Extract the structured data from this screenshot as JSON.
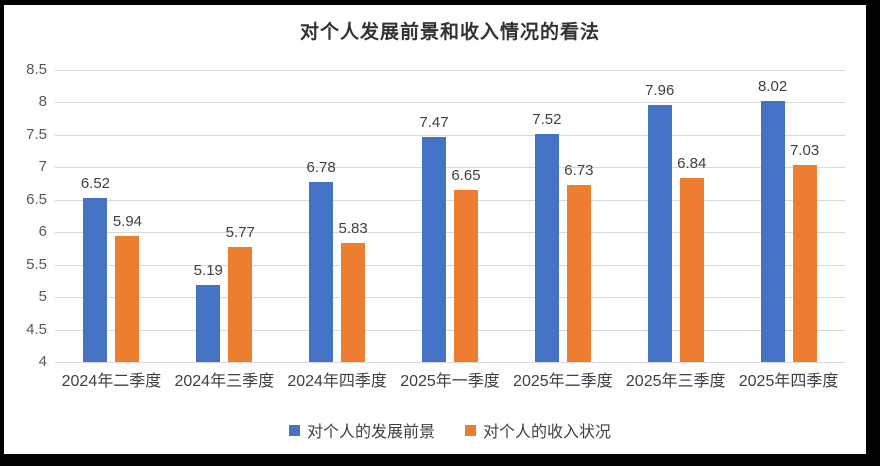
{
  "frame": {
    "background_color": "#000000",
    "panel_color": "#ffffff"
  },
  "chart_data": {
    "type": "bar",
    "title": "对个人发展前景和收入情况的看法",
    "categories": [
      "2024年二季度",
      "2024年三季度",
      "2024年四季度",
      "2025年一季度",
      "2025年二季度",
      "2025年三季度",
      "2025年四季度"
    ],
    "series": [
      {
        "name": "对个人的发展前景",
        "color": "#4472C4",
        "values": [
          6.52,
          5.19,
          6.78,
          7.47,
          7.52,
          7.96,
          8.02
        ]
      },
      {
        "name": "对个人的收入状况",
        "color": "#ED7D31",
        "values": [
          5.94,
          5.77,
          5.83,
          6.65,
          6.73,
          6.84,
          7.03
        ]
      }
    ],
    "xlabel": "",
    "ylabel": "",
    "ylim": [
      4,
      8.5
    ],
    "ytick_step": 0.5,
    "ytick_labels": [
      "8.5",
      "8",
      "7.5",
      "7",
      "6.5",
      "6",
      "5.5",
      "5",
      "4.5",
      "4"
    ],
    "grid": true,
    "gridline_color": "#d9d9d9",
    "axis_text_color": "#595959",
    "data_label_color": "#404040",
    "data_labels_visible": true,
    "legend_position": "bottom"
  }
}
